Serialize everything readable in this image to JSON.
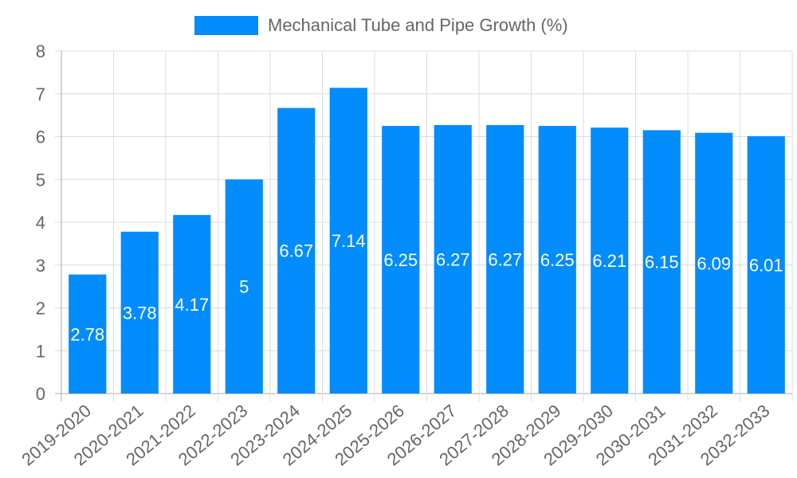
{
  "legend": {
    "label": "Mechanical Tube and Pipe Growth (%)",
    "color": "#038cfc"
  },
  "colors": {
    "bar": "#038cfc",
    "grid": "#dcdcdc",
    "axis": "#a8a8a8",
    "tick_text": "#666666",
    "bar_label": "#ffffff"
  },
  "chart_data": {
    "type": "bar",
    "title": "",
    "xlabel": "",
    "ylabel": "",
    "ylim": [
      0,
      8
    ],
    "yticks": [
      0,
      1,
      2,
      3,
      4,
      5,
      6,
      7,
      8
    ],
    "grid": true,
    "legend_position": "top",
    "categories": [
      "2019-2020",
      "2020-2021",
      "2021-2022",
      "2022-2023",
      "2023-2024",
      "2024-2025",
      "2025-2026",
      "2026-2027",
      "2027-2028",
      "2028-2029",
      "2029-2030",
      "2030-2031",
      "2031-2032",
      "2032-2033"
    ],
    "series": [
      {
        "name": "Mechanical Tube and Pipe Growth (%)",
        "values": [
          2.78,
          3.78,
          4.17,
          5,
          6.67,
          7.14,
          6.25,
          6.27,
          6.27,
          6.25,
          6.21,
          6.15,
          6.09,
          6.01
        ]
      }
    ],
    "data_labels": [
      "2.78",
      "3.78",
      "4.17",
      "5",
      "6.67",
      "7.14",
      "6.25",
      "6.27",
      "6.27",
      "6.25",
      "6.21",
      "6.15",
      "6.09",
      "6.01"
    ]
  }
}
